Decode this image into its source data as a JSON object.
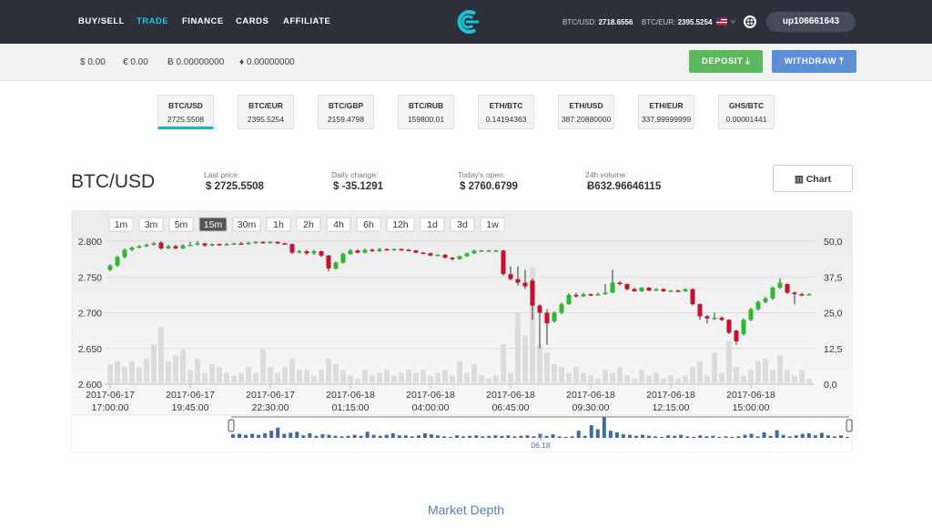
{
  "nav": {
    "links": [
      "BUY/SELL",
      "TRADE",
      "FINANCE",
      "CARDS",
      "AFFILIATE"
    ],
    "rates": [
      {
        "label": "BTC/USD:",
        "value": "2718.6556"
      },
      {
        "label": "BTC/EUR:",
        "value": "2395.5254"
      }
    ],
    "user": "up106661643"
  },
  "balances": [
    "$ 0.00",
    "€ 0.00",
    "Ƀ 0.00000000",
    "♦ 0.00000000"
  ],
  "buttons": {
    "deposit": "DEPOSIT",
    "withdraw": "WITHDRAW"
  },
  "tickers": [
    {
      "pair": "BTC/USD",
      "price": "2725.5508"
    },
    {
      "pair": "BTC/EUR",
      "price": "2395.5254"
    },
    {
      "pair": "BTC/GBP",
      "price": "2159.4798"
    },
    {
      "pair": "BTC/RUB",
      "price": "159800.01"
    },
    {
      "pair": "ETH/BTC",
      "price": "0.14194363"
    },
    {
      "pair": "ETH/USD",
      "price": "387.20880000"
    },
    {
      "pair": "ETH/EUR",
      "price": "337.99999999"
    },
    {
      "pair": "GHS/BTC",
      "price": "0.00001441"
    }
  ],
  "header": {
    "pair": "BTC/USD",
    "stats": [
      {
        "label": "Last price:",
        "value": "$ 2725.5508"
      },
      {
        "label": "Daily change:",
        "value": "$ -35.1291"
      },
      {
        "label": "Today's open:",
        "value": "$ 2760.6799"
      },
      {
        "label": "24h volume:",
        "value": "Ƀ632.96646115"
      }
    ],
    "chart_button": "Chart"
  },
  "chart_data": {
    "type": "candlestick",
    "ranges": [
      "1m",
      "3m",
      "5m",
      "15m",
      "30m",
      "1h",
      "2h",
      "4h",
      "6h",
      "12h",
      "1d",
      "3d",
      "1w"
    ],
    "active_range": "15m",
    "x": [
      "2017-06-17 17:00:00",
      "2017-06-17 17:15:00",
      "2017-06-17 17:30:00",
      "2017-06-17 17:45:00",
      "2017-06-17 18:00:00",
      "2017-06-17 18:15:00",
      "2017-06-17 18:30:00",
      "2017-06-17 18:45:00",
      "2017-06-17 19:00:00",
      "2017-06-17 19:15:00",
      "2017-06-17 19:30:00",
      "2017-06-17 19:45:00",
      "2017-06-17 20:00:00",
      "2017-06-17 20:15:00",
      "2017-06-17 20:30:00",
      "2017-06-17 20:45:00",
      "2017-06-17 21:00:00",
      "2017-06-17 21:15:00",
      "2017-06-17 21:30:00",
      "2017-06-17 21:45:00",
      "2017-06-17 22:00:00",
      "2017-06-17 22:15:00",
      "2017-06-17 22:30:00",
      "2017-06-17 22:45:00",
      "2017-06-17 23:00:00",
      "2017-06-17 23:15:00",
      "2017-06-17 23:30:00",
      "2017-06-17 23:45:00",
      "2017-06-18 00:00:00",
      "2017-06-18 00:15:00",
      "2017-06-18 00:30:00",
      "2017-06-18 00:45:00",
      "2017-06-18 01:00:00",
      "2017-06-18 01:15:00",
      "2017-06-18 01:30:00",
      "2017-06-18 01:45:00",
      "2017-06-18 02:00:00",
      "2017-06-18 02:15:00",
      "2017-06-18 02:30:00",
      "2017-06-18 02:45:00",
      "2017-06-18 03:00:00",
      "2017-06-18 03:15:00",
      "2017-06-18 03:30:00",
      "2017-06-18 03:45:00",
      "2017-06-18 04:00:00",
      "2017-06-18 04:15:00",
      "2017-06-18 04:30:00",
      "2017-06-18 04:45:00",
      "2017-06-18 05:00:00",
      "2017-06-18 05:15:00",
      "2017-06-18 05:30:00",
      "2017-06-18 05:45:00",
      "2017-06-18 06:00:00",
      "2017-06-18 06:15:00",
      "2017-06-18 06:30:00",
      "2017-06-18 06:45:00",
      "2017-06-18 07:00:00",
      "2017-06-18 07:15:00",
      "2017-06-18 07:30:00",
      "2017-06-18 07:45:00",
      "2017-06-18 08:00:00",
      "2017-06-18 08:15:00",
      "2017-06-18 08:30:00",
      "2017-06-18 08:45:00",
      "2017-06-18 09:00:00",
      "2017-06-18 09:15:00",
      "2017-06-18 09:30:00",
      "2017-06-18 09:45:00",
      "2017-06-18 10:00:00",
      "2017-06-18 10:15:00",
      "2017-06-18 10:30:00",
      "2017-06-18 10:45:00",
      "2017-06-18 11:00:00",
      "2017-06-18 11:15:00",
      "2017-06-18 11:30:00",
      "2017-06-18 11:45:00",
      "2017-06-18 12:00:00",
      "2017-06-18 12:15:00",
      "2017-06-18 12:30:00",
      "2017-06-18 12:45:00",
      "2017-06-18 13:00:00",
      "2017-06-18 13:15:00",
      "2017-06-18 13:30:00",
      "2017-06-18 13:45:00",
      "2017-06-18 14:00:00",
      "2017-06-18 14:15:00",
      "2017-06-18 14:30:00",
      "2017-06-18 14:45:00",
      "2017-06-18 15:00:00",
      "2017-06-18 15:15:00",
      "2017-06-18 15:30:00",
      "2017-06-18 15:45:00",
      "2017-06-18 16:00:00",
      "2017-06-18 16:15:00",
      "2017-06-18 16:30:00",
      "2017-06-18 16:45:00",
      "2017-06-18 17:00:00"
    ],
    "open": [
      2760,
      2766,
      2778,
      2788,
      2791,
      2793,
      2795,
      2798,
      2790,
      2793,
      2790,
      2794,
      2795,
      2797,
      2794,
      2796,
      2795,
      2796,
      2797,
      2796,
      2798,
      2799,
      2798,
      2799,
      2797,
      2796,
      2784,
      2786,
      2783,
      2786,
      2780,
      2762,
      2770,
      2782,
      2787,
      2784,
      2788,
      2786,
      2789,
      2788,
      2789,
      2788,
      2787,
      2784,
      2783,
      2780,
      2781,
      2777,
      2775,
      2779,
      2783,
      2787,
      2787,
      2787,
      2787,
      2754,
      2747,
      2742,
      2745,
      2710,
      2700,
      2688,
      2700,
      2712,
      2725,
      2723,
      2726,
      2725,
      2726,
      2728,
      2742,
      2740,
      2733,
      2730,
      2735,
      2731,
      2733,
      2730,
      2731,
      2730,
      2733,
      2712,
      2695,
      2692,
      2693,
      2690,
      2675,
      2670,
      2690,
      2705,
      2715,
      2720,
      2735,
      2740,
      2728,
      2726,
      2725
    ],
    "high": [
      2768,
      2780,
      2790,
      2793,
      2795,
      2797,
      2799,
      2800,
      2795,
      2795,
      2796,
      2799,
      2800,
      2798,
      2797,
      2797,
      2798,
      2798,
      2799,
      2799,
      2800,
      2800,
      2800,
      2800,
      2798,
      2797,
      2788,
      2788,
      2788,
      2787,
      2781,
      2772,
      2784,
      2789,
      2789,
      2790,
      2790,
      2791,
      2790,
      2790,
      2790,
      2789,
      2788,
      2785,
      2784,
      2782,
      2782,
      2778,
      2780,
      2784,
      2788,
      2788,
      2788,
      2788,
      2788,
      2765,
      2765,
      2760,
      2748,
      2712,
      2705,
      2702,
      2714,
      2727,
      2728,
      2728,
      2727,
      2728,
      2740,
      2760,
      2744,
      2741,
      2735,
      2736,
      2736,
      2734,
      2734,
      2732,
      2732,
      2734,
      2734,
      2713,
      2697,
      2700,
      2695,
      2691,
      2676,
      2692,
      2707,
      2717,
      2722,
      2737,
      2748,
      2741,
      2730,
      2728,
      2727
    ],
    "low": [
      2758,
      2764,
      2776,
      2786,
      2790,
      2792,
      2794,
      2788,
      2789,
      2789,
      2789,
      2793,
      2794,
      2792,
      2793,
      2794,
      2794,
      2795,
      2795,
      2795,
      2797,
      2797,
      2797,
      2796,
      2795,
      2782,
      2783,
      2781,
      2781,
      2778,
      2758,
      2760,
      2769,
      2781,
      2783,
      2783,
      2785,
      2785,
      2787,
      2787,
      2787,
      2786,
      2783,
      2782,
      2779,
      2779,
      2776,
      2773,
      2774,
      2778,
      2782,
      2786,
      2786,
      2786,
      2752,
      2745,
      2738,
      2733,
      2690,
      2650,
      2655,
      2686,
      2698,
      2711,
      2721,
      2722,
      2723,
      2724,
      2725,
      2727,
      2738,
      2731,
      2729,
      2729,
      2730,
      2730,
      2729,
      2729,
      2729,
      2729,
      2710,
      2690,
      2685,
      2690,
      2688,
      2670,
      2655,
      2668,
      2688,
      2703,
      2713,
      2718,
      2733,
      2726,
      2712,
      2723,
      2724
    ],
    "close": [
      2766,
      2778,
      2788,
      2791,
      2793,
      2795,
      2797,
      2790,
      2793,
      2790,
      2794,
      2795,
      2797,
      2794,
      2796,
      2795,
      2796,
      2797,
      2796,
      2798,
      2799,
      2798,
      2799,
      2797,
      2796,
      2784,
      2786,
      2783,
      2786,
      2780,
      2762,
      2770,
      2782,
      2787,
      2784,
      2788,
      2786,
      2789,
      2788,
      2789,
      2788,
      2787,
      2784,
      2783,
      2780,
      2781,
      2777,
      2775,
      2779,
      2783,
      2787,
      2787,
      2787,
      2787,
      2754,
      2747,
      2742,
      2737,
      2710,
      2700,
      2685,
      2700,
      2712,
      2725,
      2723,
      2726,
      2725,
      2726,
      2728,
      2742,
      2740,
      2733,
      2730,
      2735,
      2731,
      2733,
      2730,
      2731,
      2730,
      2733,
      2712,
      2695,
      2692,
      2693,
      2690,
      2672,
      2660,
      2690,
      2705,
      2715,
      2720,
      2735,
      2742,
      2728,
      2726,
      2725,
      2726
    ],
    "volume": [
      7,
      8,
      6,
      8,
      6,
      9,
      14,
      20,
      8,
      10,
      12,
      5,
      9,
      4,
      7,
      6,
      4,
      3,
      4,
      6,
      4,
      12,
      6,
      4,
      6,
      9,
      5,
      5,
      3,
      5,
      9,
      7,
      5,
      3,
      2,
      5,
      3,
      4,
      5,
      3,
      4,
      5,
      4,
      5,
      3,
      4,
      5,
      3,
      8,
      4,
      7,
      3,
      2,
      3,
      14,
      4,
      25,
      17,
      41,
      14,
      11,
      7,
      6,
      4,
      6,
      4,
      3,
      2,
      5,
      4,
      6,
      3,
      2,
      5,
      3,
      4,
      2,
      3,
      2,
      3,
      6,
      8,
      3,
      11,
      4,
      15,
      6,
      3,
      5,
      8,
      9,
      5,
      10,
      5,
      3,
      5,
      2
    ],
    "up_color": "#2eb82e",
    "down_color": "#c8102e",
    "volume_color": "#dcdcdc",
    "navigator_color": "#3f6aa8",
    "ylim": [
      2600,
      2800
    ],
    "yticks": [
      {
        "value": 2600,
        "label": "2.600"
      },
      {
        "value": 2650,
        "label": "2.650"
      },
      {
        "value": 2700,
        "label": "2.700"
      },
      {
        "value": 2750,
        "label": "2.750"
      },
      {
        "value": 2800,
        "label": "2.800"
      }
    ],
    "y2lim": [
      0,
      50
    ],
    "y2ticks": [
      {
        "value": 0,
        "label": "0,0"
      },
      {
        "value": 12.5,
        "label": "12,5"
      },
      {
        "value": 25,
        "label": "25,0"
      },
      {
        "value": 37.5,
        "label": "37,5"
      },
      {
        "value": 50,
        "label": "50,0"
      }
    ],
    "xticks": [
      "2017-06-17 17:00:00",
      "2017-06-17 19:45:00",
      "2017-06-17 22:30:00",
      "2017-06-18 01:15:00",
      "2017-06-18 04:00:00",
      "2017-06-18 06:45:00",
      "2017-06-18 09:30:00",
      "2017-06-18 12:15:00",
      "2017-06-18 15:00:00"
    ],
    "grid": true,
    "navigator_label": "06.18"
  },
  "footer": {
    "title": "Market Depth"
  }
}
